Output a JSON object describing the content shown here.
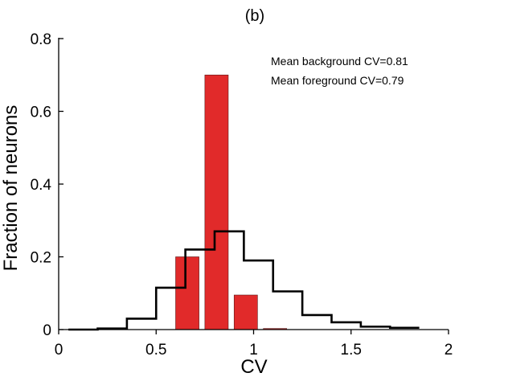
{
  "chart_data": {
    "type": "bar",
    "title": "(b)",
    "xlabel": "CV",
    "ylabel": "Fraction of neurons",
    "xlim": [
      0,
      2
    ],
    "ylim": [
      0,
      0.8
    ],
    "x_ticks": [
      0,
      0.5,
      1,
      1.5,
      2
    ],
    "x_tick_labels": [
      "0",
      "0.5",
      "1",
      "1.5",
      "2"
    ],
    "y_ticks": [
      0,
      0.2,
      0.4,
      0.6,
      0.8
    ],
    "y_tick_labels": [
      "0",
      "0.2",
      "0.4",
      "0.6",
      "0.8"
    ],
    "grid": false,
    "annotations": [
      "Mean background CV=0.81",
      "Mean foreground CV=0.79"
    ],
    "series": [
      {
        "kind": "bars",
        "color": "#e12a2a",
        "bins": [
          {
            "x0": 0.6,
            "x1": 0.72,
            "value": 0.2
          },
          {
            "x0": 0.75,
            "x1": 0.87,
            "value": 0.7
          },
          {
            "x0": 0.9,
            "x1": 1.02,
            "value": 0.095
          },
          {
            "x0": 1.05,
            "x1": 1.17,
            "value": 0.003
          }
        ]
      },
      {
        "kind": "step",
        "color": "#000000",
        "bins": [
          {
            "x0": 0.05,
            "x1": 0.2,
            "value": 0.0
          },
          {
            "x0": 0.2,
            "x1": 0.35,
            "value": 0.003
          },
          {
            "x0": 0.35,
            "x1": 0.5,
            "value": 0.03
          },
          {
            "x0": 0.5,
            "x1": 0.65,
            "value": 0.115
          },
          {
            "x0": 0.65,
            "x1": 0.8,
            "value": 0.22
          },
          {
            "x0": 0.8,
            "x1": 0.95,
            "value": 0.27
          },
          {
            "x0": 0.95,
            "x1": 1.1,
            "value": 0.19
          },
          {
            "x0": 1.1,
            "x1": 1.25,
            "value": 0.105
          },
          {
            "x0": 1.25,
            "x1": 1.4,
            "value": 0.04
          },
          {
            "x0": 1.4,
            "x1": 1.55,
            "value": 0.02
          },
          {
            "x0": 1.55,
            "x1": 1.7,
            "value": 0.008
          },
          {
            "x0": 1.7,
            "x1": 1.85,
            "value": 0.005
          }
        ]
      }
    ]
  }
}
